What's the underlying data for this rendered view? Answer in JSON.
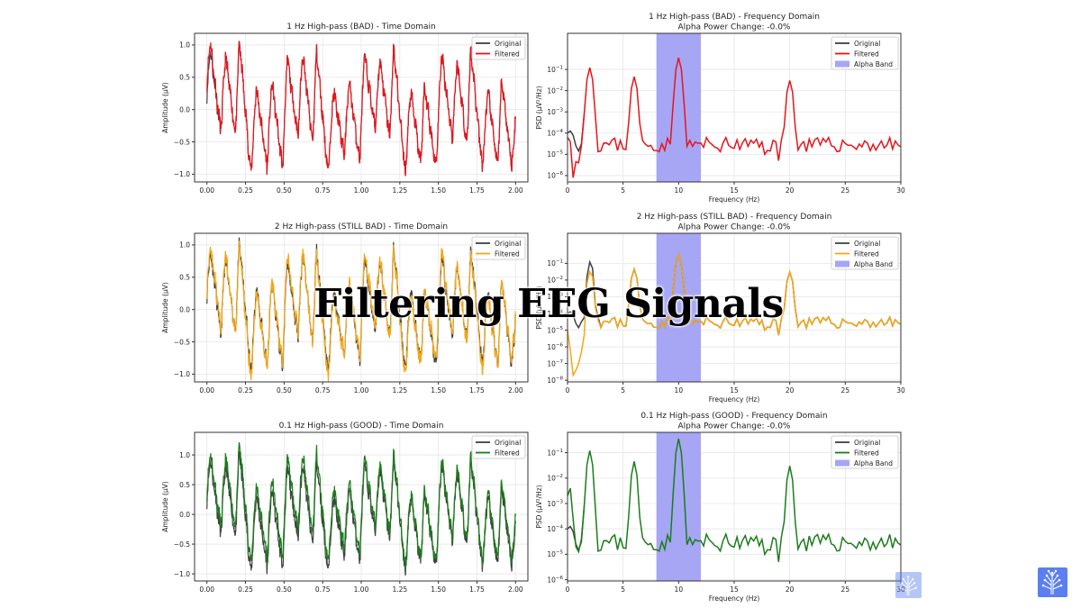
{
  "slide": {
    "overlay_title": "Filtering EEG Signals"
  },
  "colors": {
    "original": "#404040",
    "alpha_band": "#a6a6f5",
    "grid": "#e6e6e6",
    "bad_red": "#e8141c",
    "still_bad_orange": "#f5a714",
    "good_green": "#1b7d1b",
    "logo_bg": "#5b7ff0"
  },
  "legend": {
    "original": "Original",
    "filtered": "Filtered",
    "alpha_band": "Alpha Band"
  },
  "chart_data": [
    {
      "id": "time-1hz",
      "type": "line",
      "title": "1 Hz High-pass (BAD) - Time Domain",
      "xlabel": "",
      "ylabel": "Amplitude (µV)",
      "xlim": [
        -0.08,
        2.08
      ],
      "ylim": [
        -1.12,
        1.18
      ],
      "xticks": [
        "0.00",
        "0.25",
        "0.50",
        "0.75",
        "1.00",
        "1.25",
        "1.50",
        "1.75",
        "2.00"
      ],
      "yticks": [
        "−1.0",
        "−0.5",
        "0.0",
        "0.5",
        "1.0"
      ],
      "grid": true,
      "legend_position": "upper right",
      "series": [
        {
          "name": "Original",
          "color": "#404040"
        },
        {
          "name": "Filtered",
          "color": "#e8141c"
        }
      ],
      "peaks_x": [
        0.02,
        0.12,
        0.21,
        0.32,
        0.42,
        0.52,
        0.62,
        0.71,
        0.82,
        0.92,
        1.02,
        1.12,
        1.21,
        1.32,
        1.41,
        1.52,
        1.62,
        1.71,
        1.82,
        1.91,
        2.0
      ],
      "peaks_y": [
        0.95,
        0.85,
        1.08,
        0.35,
        0.45,
        0.8,
        0.9,
        0.92,
        0.3,
        0.45,
        0.85,
        0.8,
        0.98,
        0.3,
        0.35,
        0.88,
        0.75,
        0.95,
        0.3,
        0.48,
        -0.1
      ],
      "troughs_y": [
        -0.35,
        -0.4,
        -1.02,
        -0.9,
        -0.92,
        -0.42,
        -0.55,
        -1.0,
        -0.72,
        -0.8,
        -0.3,
        -0.45,
        -1.0,
        -0.85,
        -0.9,
        -0.45,
        -0.55,
        -0.92,
        -0.9,
        -0.88
      ],
      "original_offset_start": true
    },
    {
      "id": "freq-1hz",
      "type": "line",
      "title": "1 Hz High-pass (BAD) - Frequency Domain",
      "subtitle": "Alpha Power Change: -0.0%",
      "xlabel": "Frequency (Hz)",
      "ylabel": "PSD (µV²/Hz)",
      "yscale": "log",
      "xlim": [
        0,
        30
      ],
      "ylim_exp": [
        -6.3,
        0.7
      ],
      "xticks": [
        "0",
        "5",
        "10",
        "15",
        "20",
        "25",
        "30"
      ],
      "yticks_exp": [
        -6,
        -5,
        -4,
        -3,
        -2,
        -1
      ],
      "alpha_band": [
        8,
        12
      ],
      "grid": true,
      "legend_position": "upper right",
      "peaks_hz": [
        2,
        6,
        10,
        20
      ],
      "peak_values": [
        0.12,
        0.045,
        0.35,
        0.03
      ],
      "series": [
        {
          "name": "Original",
          "color": "#404040"
        },
        {
          "name": "Filtered",
          "color": "#e8141c"
        }
      ],
      "low_freq_filtered": [
        [
          0,
          -4.2
        ],
        [
          0.25,
          -4.4
        ],
        [
          0.5,
          -6.1
        ],
        [
          0.75,
          -5.35
        ],
        [
          1.0,
          -5.4
        ],
        [
          1.25,
          -4.6
        ],
        [
          1.5,
          -4.25
        ]
      ],
      "low_freq_original": [
        [
          0,
          -4.0
        ],
        [
          0.25,
          -3.9
        ],
        [
          0.5,
          -4.1
        ],
        [
          0.75,
          -4.6
        ],
        [
          1.0,
          -4.85
        ],
        [
          1.25,
          -4.5
        ],
        [
          1.5,
          -4.25
        ]
      ]
    },
    {
      "id": "time-2hz",
      "type": "line",
      "title": "2 Hz High-pass (STILL BAD) - Time Domain",
      "xlabel": "",
      "ylabel": "Amplitude (µV)",
      "xlim": [
        -0.08,
        2.08
      ],
      "ylim": [
        -1.12,
        1.18
      ],
      "xticks": [
        "0.00",
        "0.25",
        "0.50",
        "0.75",
        "1.00",
        "1.25",
        "1.50",
        "1.75",
        "2.00"
      ],
      "yticks": [
        "−1.0",
        "−0.5",
        "0.0",
        "0.5",
        "1.0"
      ],
      "grid": true,
      "legend_position": "upper right",
      "series": [
        {
          "name": "Original",
          "color": "#404040"
        },
        {
          "name": "Filtered",
          "color": "#f5a714"
        }
      ]
    },
    {
      "id": "freq-2hz",
      "type": "line",
      "title": "2 Hz High-pass (STILL BAD) - Frequency Domain",
      "subtitle": "Alpha Power Change: -0.0%",
      "xlabel": "Frequency (Hz)",
      "ylabel": "PSD (µV²/Hz)",
      "yscale": "log",
      "xlim": [
        0,
        30
      ],
      "ylim_exp": [
        -8.1,
        0.8
      ],
      "xticks": [
        "0",
        "5",
        "10",
        "15",
        "20",
        "25",
        "30"
      ],
      "yticks_exp": [
        -8,
        -7,
        -6,
        -5,
        -4,
        -3,
        -2,
        -1
      ],
      "alpha_band": [
        8,
        12
      ],
      "grid": true,
      "legend_position": "upper right",
      "series": [
        {
          "name": "Original",
          "color": "#404040"
        },
        {
          "name": "Filtered",
          "color": "#f5a714"
        }
      ],
      "low_freq_filtered": [
        [
          0,
          -5.0
        ],
        [
          0.25,
          -6.2
        ],
        [
          0.5,
          -7.7
        ],
        [
          0.75,
          -7.4
        ],
        [
          1.0,
          -7.0
        ],
        [
          1.25,
          -6.3
        ],
        [
          1.5,
          -5.3
        ],
        [
          1.75,
          -2.2
        ],
        [
          2.0,
          -1.5
        ],
        [
          2.25,
          -1.8
        ],
        [
          2.5,
          -3.6
        ],
        [
          2.75,
          -4.4
        ]
      ],
      "low_freq_original": [
        [
          0,
          -4.0
        ],
        [
          0.25,
          -3.9
        ],
        [
          0.5,
          -4.1
        ],
        [
          0.75,
          -4.6
        ],
        [
          1.0,
          -4.85
        ],
        [
          1.25,
          -4.5
        ],
        [
          1.5,
          -4.25
        ],
        [
          1.75,
          -1.8
        ],
        [
          2.0,
          -0.92
        ],
        [
          2.25,
          -1.3
        ],
        [
          2.5,
          -3.5
        ],
        [
          2.75,
          -4.2
        ]
      ]
    },
    {
      "id": "time-0.1hz",
      "type": "line",
      "title": "0.1 Hz High-pass (GOOD) - Time Domain",
      "xlabel": "",
      "ylabel": "Amplitude (µV)",
      "xlim": [
        -0.08,
        2.08
      ],
      "ylim": [
        -1.12,
        1.38
      ],
      "xticks": [
        "0.00",
        "0.25",
        "0.50",
        "0.75",
        "1.00",
        "1.25",
        "1.50",
        "1.75",
        "2.00"
      ],
      "yticks": [
        "−1.0",
        "−0.5",
        "0.0",
        "0.5",
        "1.0"
      ],
      "grid": true,
      "legend_position": "upper right",
      "series": [
        {
          "name": "Original",
          "color": "#404040"
        },
        {
          "name": "Filtered",
          "color": "#1b7d1b"
        }
      ]
    },
    {
      "id": "freq-0.1hz",
      "type": "line",
      "title": "0.1 Hz High-pass (GOOD) - Frequency Domain",
      "subtitle": "Alpha Power Change: -0.0%",
      "xlabel": "Frequency (Hz)",
      "ylabel": "PSD (µV²/Hz)",
      "yscale": "log",
      "xlim": [
        0,
        30
      ],
      "ylim_exp": [
        -6.05,
        -0.2
      ],
      "xticks": [
        "0",
        "5",
        "10",
        "15",
        "20",
        "25",
        "30"
      ],
      "yticks_exp": [
        -6,
        -5,
        -4,
        -3,
        -2,
        -1
      ],
      "alpha_band": [
        8,
        12
      ],
      "grid": true,
      "legend_position": "upper right",
      "series": [
        {
          "name": "Original",
          "color": "#404040"
        },
        {
          "name": "Filtered",
          "color": "#1b7d1b"
        }
      ],
      "low_freq_filtered": [
        [
          0,
          -2.7
        ],
        [
          0.25,
          -2.4
        ],
        [
          0.5,
          -3.6
        ],
        [
          0.75,
          -4.7
        ],
        [
          1.0,
          -4.9
        ],
        [
          1.25,
          -4.4
        ],
        [
          1.5,
          -4.25
        ]
      ],
      "low_freq_original": [
        [
          0,
          -4.0
        ],
        [
          0.25,
          -3.9
        ],
        [
          0.5,
          -4.1
        ],
        [
          0.75,
          -4.6
        ],
        [
          1.0,
          -4.85
        ],
        [
          1.25,
          -4.5
        ],
        [
          1.5,
          -4.25
        ]
      ]
    }
  ]
}
